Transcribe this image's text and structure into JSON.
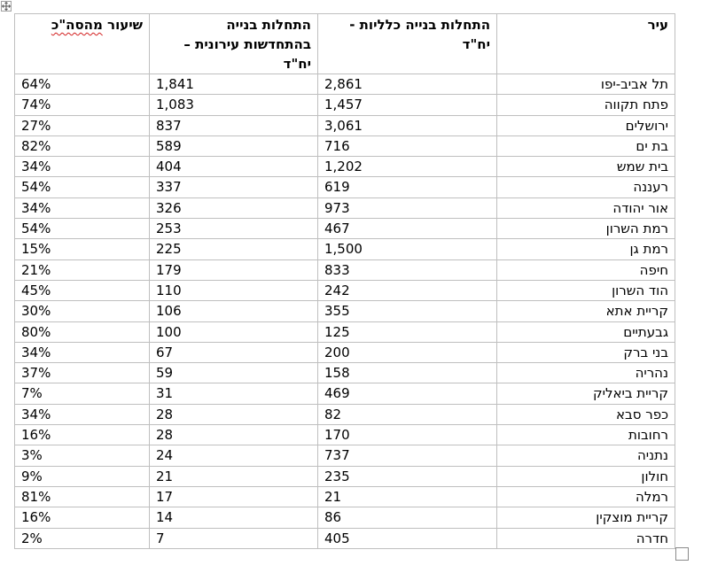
{
  "table": {
    "headers": {
      "city": "עיר",
      "total_starts": "התחלות בנייה כלליות - יח\"ד",
      "urban_renewal_starts": "התחלות בנייה בהתחדשות עירונית – יח\"ד",
      "share_prefix": "שיעור ",
      "share_word": "מהסה\"כ"
    },
    "rows": [
      {
        "city": "תל אביב-יפו",
        "total": "2,861",
        "renewal": "1,841",
        "share": "64%"
      },
      {
        "city": "פתח תקווה",
        "total": "1,457",
        "renewal": "1,083",
        "share": "74%"
      },
      {
        "city": "ירושלים",
        "total": "3,061",
        "renewal": "837",
        "share": "27%"
      },
      {
        "city": "בת ים",
        "total": "716",
        "renewal": "589",
        "share": "82%"
      },
      {
        "city": "בית שמש",
        "total": "1,202",
        "renewal": "404",
        "share": "34%"
      },
      {
        "city": "רעננה",
        "total": "619",
        "renewal": "337",
        "share": "54%"
      },
      {
        "city": "אור יהודה",
        "total": "973",
        "renewal": "326",
        "share": "34%"
      },
      {
        "city": "רמת השרון",
        "total": "467",
        "renewal": "253",
        "share": "54%"
      },
      {
        "city": "רמת גן",
        "total": "1,500",
        "renewal": "225",
        "share": "15%"
      },
      {
        "city": "חיפה",
        "total": "833",
        "renewal": "179",
        "share": "21%"
      },
      {
        "city": "הוד השרון",
        "total": "242",
        "renewal": "110",
        "share": "45%"
      },
      {
        "city": "קריית אתא",
        "total": "355",
        "renewal": "106",
        "share": "30%"
      },
      {
        "city": "גבעתיים",
        "total": "125",
        "renewal": "100",
        "share": "80%"
      },
      {
        "city": "בני ברק",
        "total": "200",
        "renewal": "67",
        "share": "34%"
      },
      {
        "city": "נהריה",
        "total": "158",
        "renewal": "59",
        "share": "37%"
      },
      {
        "city": "קריית ביאליק",
        "total": "469",
        "renewal": "31",
        "share": "7%"
      },
      {
        "city": "כפר סבא",
        "total": "82",
        "renewal": "28",
        "share": "34%"
      },
      {
        "city": "רחובות",
        "total": "170",
        "renewal": "28",
        "share": "16%"
      },
      {
        "city": "נתניה",
        "total": "737",
        "renewal": "24",
        "share": "3%"
      },
      {
        "city": "חולון",
        "total": "235",
        "renewal": "21",
        "share": "9%"
      },
      {
        "city": "רמלה",
        "total": "21",
        "renewal": "17",
        "share": "81%"
      },
      {
        "city": "קריית מוצקין",
        "total": "86",
        "renewal": "14",
        "share": "16%"
      },
      {
        "city": "חדרה",
        "total": "405",
        "renewal": "7",
        "share": "2%"
      }
    ]
  },
  "icons": {
    "move_handle": "move-arrows-icon",
    "resize_handle": "resize-square-icon"
  },
  "colors": {
    "border": "#bfbfbf",
    "spellcheck_underline": "#d21f1f"
  }
}
